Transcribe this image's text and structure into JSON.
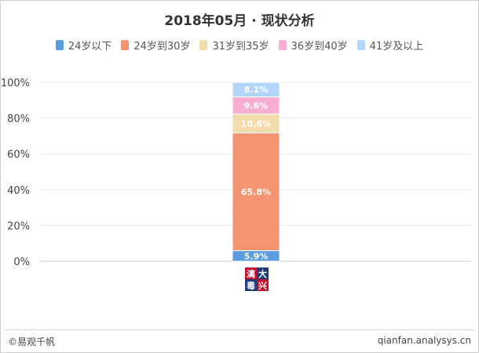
{
  "title": "2018年05月 · 现状分析",
  "footer": {
    "brand": "©易观千帆",
    "site": "qianfan.analysys.cn"
  },
  "logo_text": "漓大毒兴",
  "chart_data": {
    "type": "bar",
    "stacked": true,
    "categories": [
      ""
    ],
    "series": [
      {
        "name": "24岁以下",
        "color": "#5b9bdf",
        "values": [
          5.9
        ]
      },
      {
        "name": "24岁到30岁",
        "color": "#f49472",
        "values": [
          65.8
        ]
      },
      {
        "name": "31岁到35岁",
        "color": "#f3dbac",
        "values": [
          10.6
        ]
      },
      {
        "name": "36岁到40岁",
        "color": "#f8aed3",
        "values": [
          9.6
        ]
      },
      {
        "name": "41岁及以上",
        "color": "#b3d5fb",
        "values": [
          8.1
        ]
      }
    ],
    "ylim": [
      0,
      100
    ],
    "yticks": [
      "0%",
      "20%",
      "40%",
      "60%",
      "80%",
      "100%"
    ],
    "legend_position": "top",
    "grid": true
  }
}
